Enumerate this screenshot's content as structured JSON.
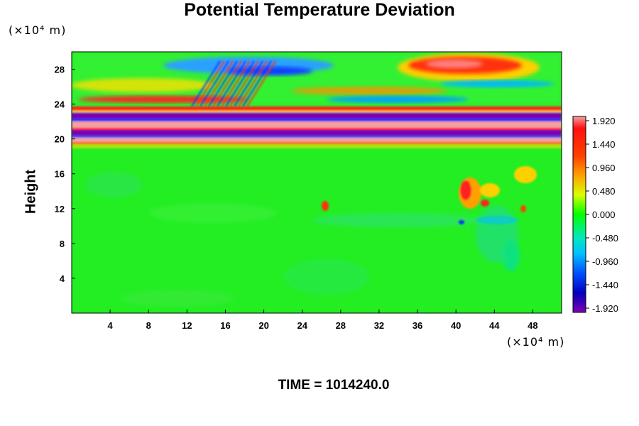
{
  "chart_data": {
    "type": "heatmap",
    "title": "Potential Temperature Deviation",
    "ylabel": "Height",
    "xlabel": "",
    "x_unit": "(×10⁴ m)",
    "y_unit": "(×10⁴ m)",
    "xlim": [
      0,
      51
    ],
    "ylim": [
      0,
      30
    ],
    "x_ticks": [
      4,
      8,
      12,
      16,
      20,
      24,
      28,
      32,
      36,
      40,
      44,
      48
    ],
    "y_ticks": [
      4,
      8,
      12,
      16,
      20,
      24,
      28
    ],
    "colorbar": {
      "ticks": [
        "1.920",
        "1.440",
        "0.960",
        "0.480",
        "0.000",
        "-0.480",
        "-0.960",
        "-1.440",
        "-1.920"
      ],
      "range": [
        -1.92,
        1.92
      ]
    },
    "grid": false,
    "time_label": "TIME = 1014240.0"
  }
}
